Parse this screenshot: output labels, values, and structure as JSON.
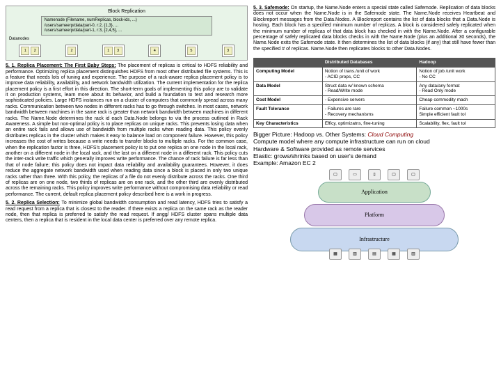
{
  "diagram": {
    "title": "Block Replication",
    "nn_header": "Namenode (Filename, numReplicas, block-ids, ...)",
    "nn_line1": "/users/sameerp/data/part-0, r:2, {1,3}, ...",
    "nn_line2": "/users/sameerp/data/part-1, r:3, {2,4,5}, ...",
    "dn_label": "Datanodes",
    "nodes": [
      [
        "1",
        "2"
      ],
      [
        "2"
      ],
      [
        "1",
        "3"
      ],
      [
        "4"
      ],
      [
        "5"
      ],
      [
        "3"
      ]
    ]
  },
  "s51_head": "5. 1. Replica Placement: The First Baby Steps:",
  "s51_body": " The placement of replicas is critical to HDFS reliability and performance. Optimizing replica placement distinguishes HDFS from most other distributed file systems. This is a feature that needs lots of tuning and experience. The purpose of a rack-aware replica placement policy is to improve data reliability, availability, and network bandwidth utilization. The current implementation for the replica placement policy is a first effort in this direction. The short-term goals of implementing this policy are to validate it on production systems, learn more about its behavior, and build a foundation to test and research more sophisticated policies. Large HDFS instances run on a cluster of computers that commonly spread across many racks. Communication between two nodes in different racks has to go through switches. In most cases, network bandwidth between machines in the same rack is greater than network bandwidth between machines in different racks. The Name.Node determines the rack id each Data.Node belongs to via the process outlined in Rack Awareness. A simple but non-optimal policy is to place replicas on unique racks. This prevents losing data when an entire rack fails and allows use of bandwidth from multiple racks when reading data. This policy evenly distributes replicas in the cluster which makes it easy to balance load on component failure. However, this policy increases the cost of writes because a write needs to transfer blocks to multiple racks. For the common case, when the replication factor is three, HDFS's placement policy is to put one replica on one node in the local rack, another on a different node in the local rack, and the last on a different node in a different rack. This policy cuts the inter-rack write traffic which generally improves write performance. The chance of rack failure is far less than that of node failure; this policy does not impact data reliability and availability guarantees. However, it does reduce the aggregate network bandwidth used when reading data since a block is placed in only two unique racks rather than three. With this policy, the replicas of a file do not evenly distribute across the racks. One third of replicas are on one node, two thirds of replicas are on one rack, and the other third are evenly distributed across the remaining racks. This policy improves write performance without compromising data reliability or read performance. The current, default replica placement policy described here is a work in progress.",
  "s52_head": "5. 2. Replica Selection:",
  "s52_body": " To minimize global bandwidth consumption and read latency, HDFS tries to satisfy a read request from a replica that is closest to the reader. If there exists a replica on the same rack as the reader node, then that replica is preferred to satisfy the read request. If angg/ HDFS cluster spans multiple data centers, then a replica that is resident in the local data center is preferred over any remote replica.",
  "s53_head": "5. 3. Safemode:",
  "s53_body": " On startup, the Name.Node enters a special state called Safemode. Replication of data blocks does not occur when the Name.Node is in the Safemode state. The Name.Node receives Heartbeat and Blockreport messages from the Data.Nodes. A Blockreport contains the list of data blocks that a Data.Node is hosting. Each block has a specified minimum number of replicas. A block is considered safely replicated when the minimum number of replicas of that data block has checked in with the Name.Node. After a configurable percentage of safely replicated data blocks checks in with the Name.Node (plus an additional 30 seconds), the Name.Node exits the Safemode state. It then determines the list of data blocks (if any) that still have fewer than the specified # of replicas. Name.Node then replicates blocks to other Data.Nodes.",
  "table": {
    "h1": "Distributed Databases",
    "h2": "Hadoop",
    "rows": [
      {
        "k": "Computing Model",
        "a": "Notion of trans./unit of work\n-    ACID props, CC",
        "b": "Notion of job /unit work\n-    No CC"
      },
      {
        "k": "Data Model",
        "a": "Struct data w/ known schema\n-    Read/Write mode",
        "b": "Any data/any format\n-    Read Only mode"
      },
      {
        "k": "Cost Model",
        "a": "-    Expensive servers",
        "b": "Cheap commodity mach"
      },
      {
        "k": "Fault Tolerance",
        "a": "-    Failures are rare\n-    Recovery mechanisms",
        "b": "Failure common ~1000s\nSimple efficient fault tol"
      },
      {
        "k": "Key Characteristics",
        "a": "Efficy, optimizatns, fine-tuning",
        "b": "Scalability, flex, fault tol"
      }
    ]
  },
  "bigpic_head": "Bigger Picture: Hadoop vs. Other Systems:",
  "bigpic_title": " Cloud Computing",
  "bigpic_l1": "Compute model where any compute infrastructure can run on cloud",
  "bigpic_l2": "Hardware & Software provided as remote services",
  "bigpic_l3": "Elastic: grows/shrinks based on user's demand",
  "bigpic_l4": "Example: Amazon EC 2",
  "layers": {
    "app": "Application",
    "plat": "Platform",
    "infra": "Infrastructure"
  }
}
